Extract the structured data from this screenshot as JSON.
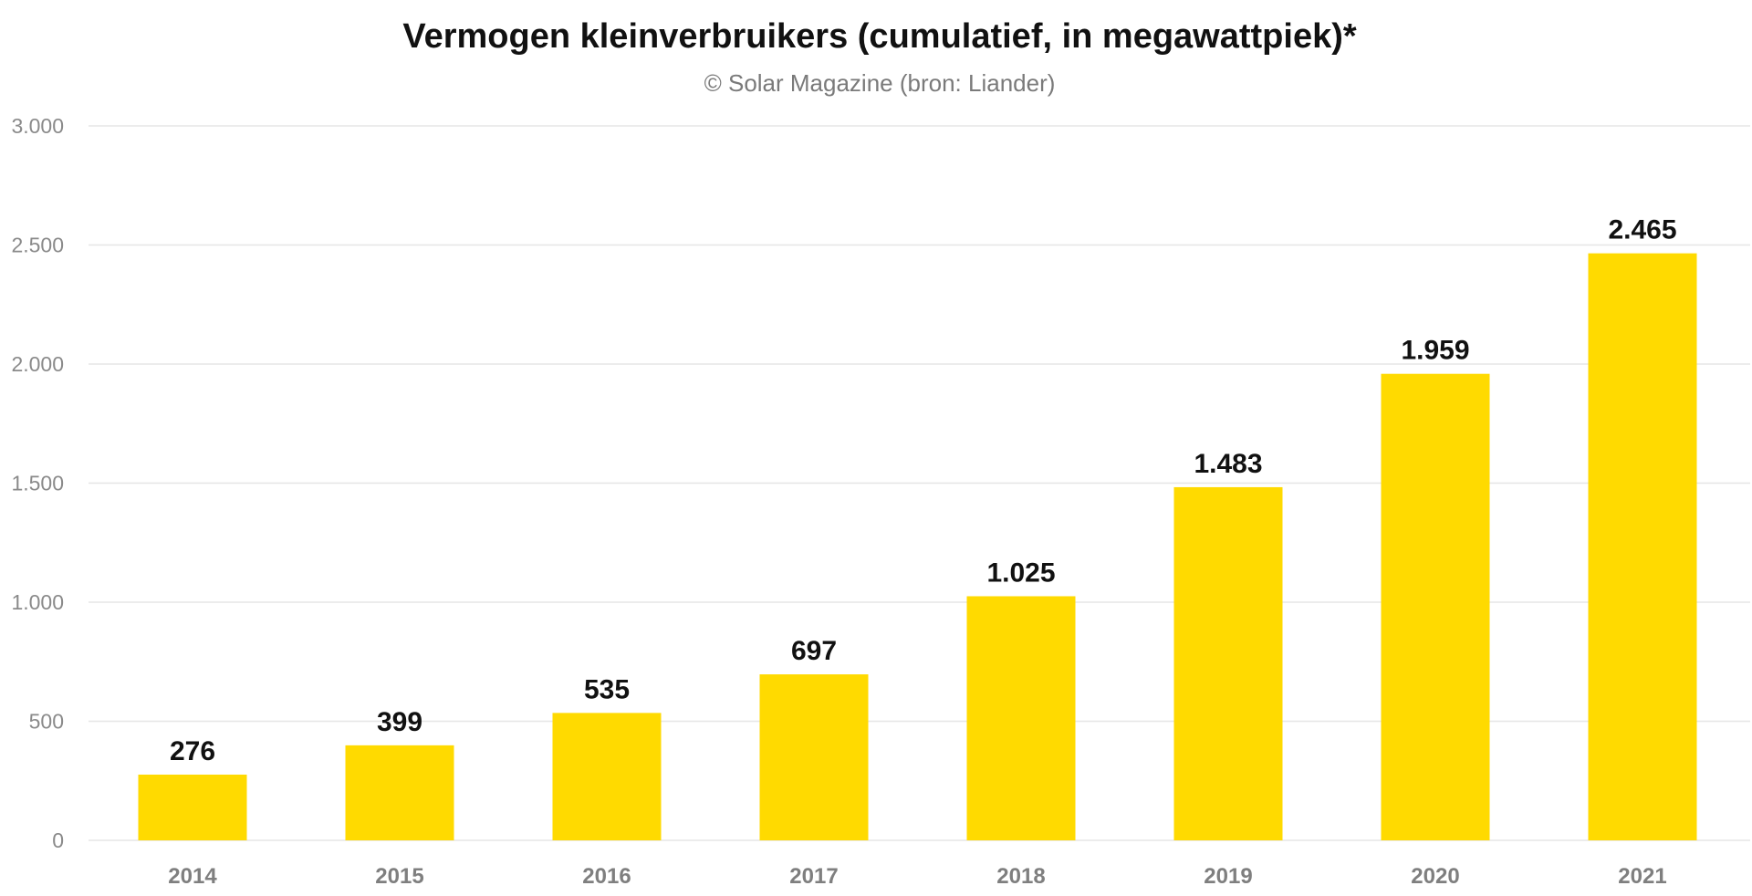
{
  "chart_data": {
    "type": "bar",
    "title": "Vermogen kleinverbruikers (cumulatief, in megawattpiek)*",
    "subtitle": "© Solar Magazine (bron: Liander)",
    "xlabel": "",
    "ylabel": "",
    "categories": [
      "2014",
      "2015",
      "2016",
      "2017",
      "2018",
      "2019",
      "2020",
      "2021"
    ],
    "values": [
      276,
      399,
      535,
      697,
      1025,
      1483,
      1959,
      2465
    ],
    "data_labels": [
      "276",
      "399",
      "535",
      "697",
      "1.025",
      "1.483",
      "1.959",
      "2.465"
    ],
    "ylim": [
      0,
      3000
    ],
    "yticks": [
      0,
      500,
      1000,
      1500,
      2000,
      2500,
      3000
    ],
    "ytick_labels": [
      "0",
      "500",
      "1.000",
      "1.500",
      "2.000",
      "2.500",
      "3.000"
    ],
    "grid": true,
    "legend": "none",
    "bar_color": "#FFDA00"
  }
}
